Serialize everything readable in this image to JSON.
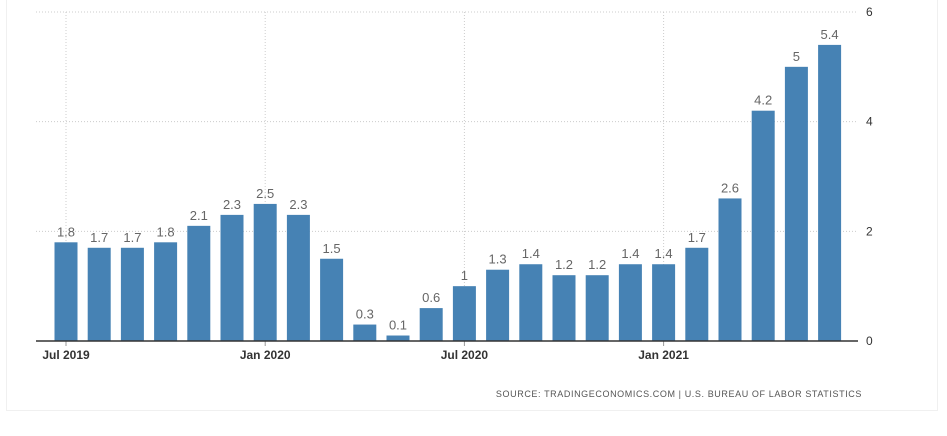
{
  "chart_data": {
    "type": "bar",
    "categories": [
      "Jul 2019",
      "Aug 2019",
      "Sep 2019",
      "Oct 2019",
      "Nov 2019",
      "Dec 2019",
      "Jan 2020",
      "Feb 2020",
      "Mar 2020",
      "Apr 2020",
      "May 2020",
      "Jun 2020",
      "Jul 2020",
      "Aug 2020",
      "Sep 2020",
      "Oct 2020",
      "Nov 2020",
      "Dec 2020",
      "Jan 2021",
      "Feb 2021",
      "Mar 2021",
      "Apr 2021",
      "May 2021",
      "Jun 2021"
    ],
    "values": [
      1.8,
      1.7,
      1.7,
      1.8,
      2.1,
      2.3,
      2.5,
      2.3,
      1.5,
      0.3,
      0.1,
      0.6,
      1,
      1.3,
      1.4,
      1.2,
      1.2,
      1.4,
      1.4,
      1.7,
      2.6,
      4.2,
      5,
      5.4
    ],
    "data_labels": [
      "1.8",
      "1.7",
      "1.7",
      "1.8",
      "2.1",
      "2.3",
      "2.5",
      "2.3",
      "1.5",
      "0.3",
      "0.1",
      "0.6",
      "1",
      "1.3",
      "1.4",
      "1.2",
      "1.2",
      "1.4",
      "1.4",
      "1.7",
      "2.6",
      "4.2",
      "5",
      "5.4"
    ],
    "x_tick_labels": [
      {
        "label": "Jul 2019",
        "index": 0
      },
      {
        "label": "Jan 2020",
        "index": 6
      },
      {
        "label": "Jul 2020",
        "index": 12
      },
      {
        "label": "Jan 2021",
        "index": 18
      }
    ],
    "y_ticks": [
      0,
      2,
      4,
      6
    ],
    "ylim": [
      0,
      6
    ],
    "y_axis_side": "right",
    "grid": true,
    "bar_color": "#4682b4",
    "gridline_color": "#cccccc",
    "source": "SOURCE: TRADINGECONOMICS.COM | U.S. BUREAU OF LABOR STATISTICS"
  }
}
